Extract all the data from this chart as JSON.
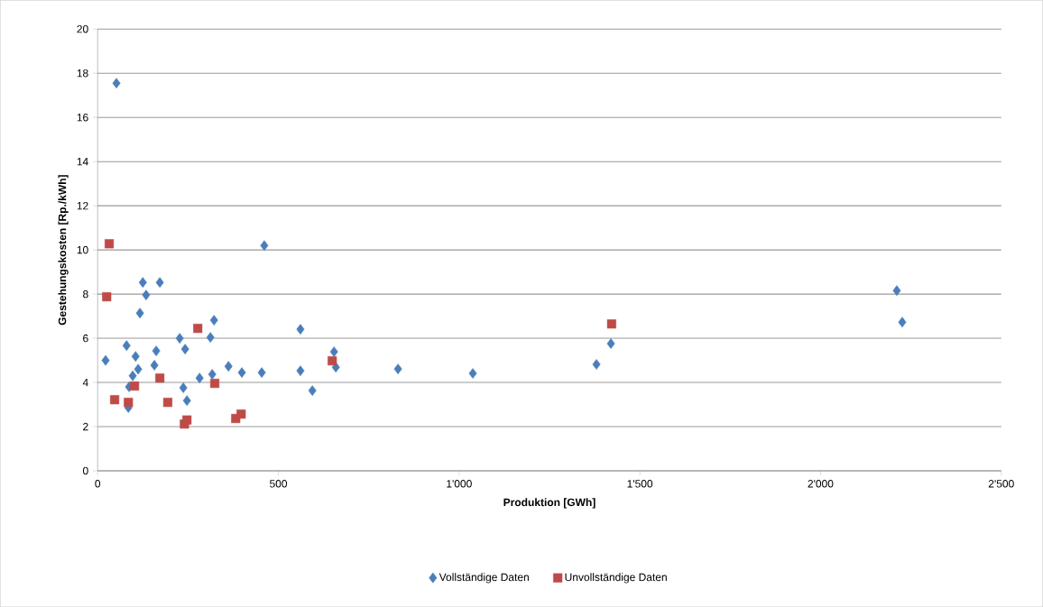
{
  "chart_data": {
    "type": "scatter",
    "xlabel": "Produktion [GWh]",
    "ylabel": "Gestehungskosten [Rp./kWh]",
    "xlim": [
      0,
      2500
    ],
    "ylim": [
      0,
      20
    ],
    "xticks": [
      0,
      500,
      {
        "value": 1000,
        "label": "1'000"
      },
      {
        "value": 1500,
        "label": "1'500"
      },
      {
        "value": 2000,
        "label": "2'000"
      },
      {
        "value": 2500,
        "label": "2'500"
      }
    ],
    "yticks": [
      0,
      2,
      4,
      6,
      8,
      10,
      12,
      14,
      16,
      18,
      20
    ],
    "grid": "y",
    "legend": "bottom",
    "series": [
      {
        "name": "Vollständige Daten",
        "color": "#4a7ebb",
        "marker": "diamond",
        "x": [
          22,
          52,
          80,
          105,
          112,
          97,
          87,
          85,
          125,
          134,
          117,
          172,
          162,
          157,
          227,
          242,
          237,
          247,
          282,
          322,
          312,
          317,
          362,
          399,
          454,
          461,
          561,
          561,
          594,
          654,
          659,
          831,
          1038,
          1380,
          1420,
          2211,
          2226
        ],
        "values": [
          5.0,
          17.55,
          5.67,
          5.18,
          4.6,
          4.3,
          3.8,
          2.86,
          8.53,
          7.96,
          7.14,
          8.53,
          5.43,
          4.78,
          6.0,
          5.51,
          3.76,
          3.18,
          4.2,
          6.82,
          6.04,
          4.37,
          4.73,
          4.45,
          4.45,
          10.2,
          6.41,
          4.53,
          3.63,
          5.39,
          4.69,
          4.61,
          4.41,
          4.82,
          5.76,
          8.16,
          6.73
        ]
      },
      {
        "name": "Unvollständige Daten",
        "color": "#be4b48",
        "marker": "square",
        "x": [
          32,
          25,
          47,
          85,
          102,
          172,
          194,
          277,
          324,
          240,
          247,
          382,
          397,
          649,
          1422
        ],
        "values": [
          10.28,
          7.88,
          3.22,
          3.1,
          3.84,
          4.2,
          3.1,
          6.45,
          3.96,
          2.12,
          2.3,
          2.37,
          2.57,
          4.98,
          6.65
        ]
      }
    ]
  }
}
